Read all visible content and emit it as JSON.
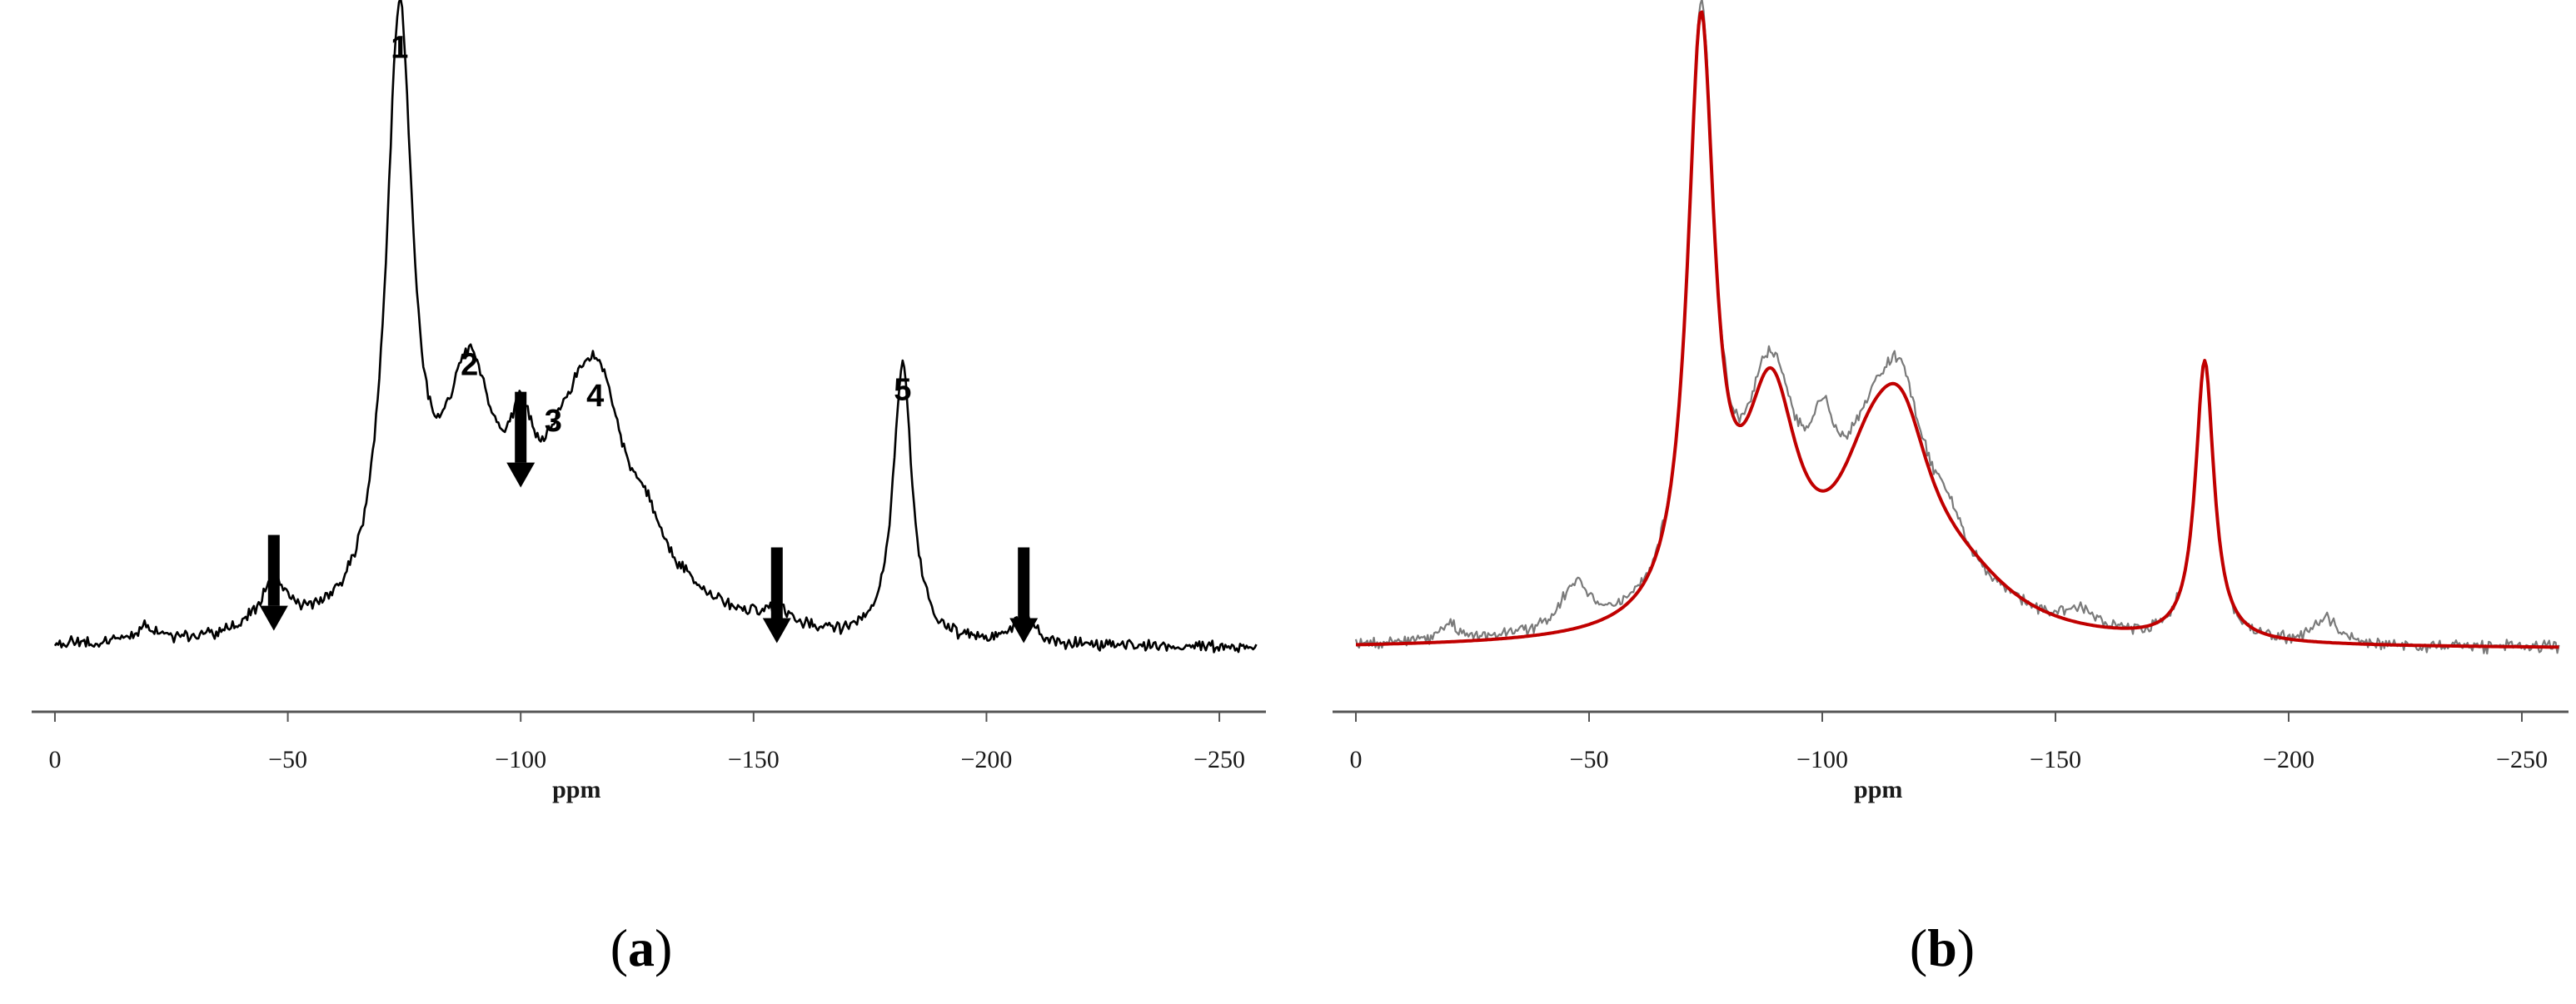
{
  "colors": {
    "axis": "#555555",
    "spectrum_a": "#000000",
    "experimental_b": "#7a7a7a",
    "fit_b": "#c00000",
    "arrow": "#000000"
  },
  "chart_data": [
    {
      "type": "line",
      "panel": "a",
      "caption_prefix": "(",
      "caption_letter": "a",
      "caption_suffix": ")",
      "xlabel": "ppm",
      "xlim": [
        5,
        -260
      ],
      "x_reversed": true,
      "xticks": [
        0,
        -50,
        -100,
        -150,
        -200,
        -250
      ],
      "xtick_labels": [
        "0",
        "−50",
        "−100",
        "−150",
        "−200",
        "−250"
      ],
      "y_axis_shown": false,
      "ylim": [
        0,
        1.05
      ],
      "grid": false,
      "baseline": 0.06,
      "series": [
        {
          "peaks": [
            {
              "center": -20,
              "height": 0.025,
              "width": 3
            },
            {
              "center": -47,
              "height": 0.075,
              "width": 4
            },
            {
              "center": -74,
              "height": 0.95,
              "width": 3.5
            },
            {
              "center": -89,
              "height": 0.37,
              "width": 7
            },
            {
              "center": -100,
              "height": 0.15,
              "width": 3
            },
            {
              "center": -110,
              "height": 0.2,
              "width": 9
            },
            {
              "center": -117,
              "height": 0.28,
              "width": 7
            },
            {
              "center": -127,
              "height": 0.07,
              "width": 4
            },
            {
              "center": -135,
              "height": 0.04,
              "width": 12
            },
            {
              "center": -155,
              "height": 0.03,
              "width": 4
            },
            {
              "center": -182,
              "height": 0.45,
              "width": 2.4
            },
            {
              "center": -208,
              "height": 0.04,
              "width": 3
            }
          ]
        }
      ],
      "annotations": [
        {
          "text": "1",
          "x": -74,
          "y": 1.0
        },
        {
          "text": "2",
          "x": -89,
          "y": 0.49
        },
        {
          "text": "3",
          "x": -107,
          "y": 0.4
        },
        {
          "text": "4",
          "x": -116,
          "y": 0.44
        },
        {
          "text": "5",
          "x": -182,
          "y": 0.45
        }
      ],
      "arrows": [
        {
          "x": -47,
          "tip_y": 0.09
        },
        {
          "x": -100,
          "tip_y": 0.32
        },
        {
          "x": -155,
          "tip_y": 0.07
        },
        {
          "x": -208,
          "tip_y": 0.07
        }
      ]
    },
    {
      "type": "line",
      "panel": "b",
      "caption_prefix": "(",
      "caption_letter": "b",
      "caption_suffix": ")",
      "xlabel": "ppm",
      "xlim": [
        5,
        -260
      ],
      "x_reversed": true,
      "xticks": [
        0,
        -50,
        -100,
        -150,
        -200,
        -250
      ],
      "xtick_labels": [
        "0",
        "−50",
        "−100",
        "−150",
        "−200",
        "−250"
      ],
      "y_axis_shown": false,
      "ylim": [
        0,
        1.05
      ],
      "grid": false,
      "baseline": 0.06,
      "series": [
        {
          "role": "experimental",
          "peaks": [
            {
              "center": -20,
              "height": 0.025,
              "width": 3
            },
            {
              "center": -47,
              "height": 0.075,
              "width": 4
            },
            {
              "center": -74,
              "height": 0.95,
              "width": 3.5
            },
            {
              "center": -89,
              "height": 0.37,
              "width": 7
            },
            {
              "center": -100,
              "height": 0.15,
              "width": 3
            },
            {
              "center": -110,
              "height": 0.2,
              "width": 9
            },
            {
              "center": -117,
              "height": 0.28,
              "width": 7
            },
            {
              "center": -127,
              "height": 0.07,
              "width": 4
            },
            {
              "center": -135,
              "height": 0.04,
              "width": 12
            },
            {
              "center": -155,
              "height": 0.03,
              "width": 4
            },
            {
              "center": -182,
              "height": 0.45,
              "width": 2.4
            },
            {
              "center": -208,
              "height": 0.04,
              "width": 3
            }
          ]
        },
        {
          "role": "fit",
          "peaks": [
            {
              "center": -74,
              "height": 0.94,
              "width": 3.5
            },
            {
              "center": -89,
              "height": 0.35,
              "width": 7
            },
            {
              "center": -110,
              "height": 0.18,
              "width": 9
            },
            {
              "center": -117,
              "height": 0.24,
              "width": 8
            },
            {
              "center": -130,
              "height": 0.07,
              "width": 14
            },
            {
              "center": -182,
              "height": 0.45,
              "width": 2.4
            }
          ]
        }
      ]
    }
  ]
}
